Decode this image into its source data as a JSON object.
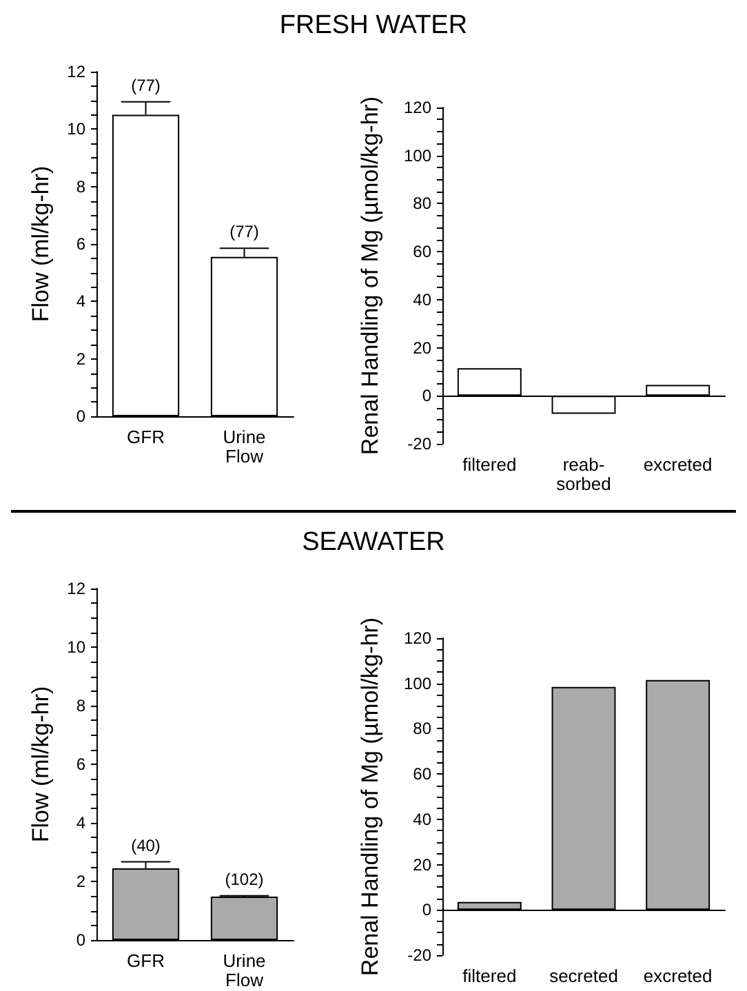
{
  "chart_data": [
    {
      "type": "bar",
      "title": "FRESH WATER",
      "ylabel": "Flow (ml/kg-hr)",
      "categories": [
        "GFR",
        "Urine\nFlow"
      ],
      "values": [
        10.5,
        5.55
      ],
      "errors": [
        0.45,
        0.3
      ],
      "annotations": [
        {
          "text": "(77)",
          "x": "GFR",
          "y": 10.95
        },
        {
          "text": "(77)",
          "x": "Urine\nFlow",
          "y": 5.85
        }
      ],
      "color": "#ffffff",
      "ylim": [
        0,
        12
      ],
      "yticks": [
        0,
        2,
        4,
        6,
        8,
        10,
        12
      ]
    },
    {
      "type": "bar",
      "ylabel": "Renal Handling of Mg (µmol/kg-hr)",
      "categories": [
        "filtered",
        "reab-\nsorbed",
        "excreted"
      ],
      "values": [
        11.5,
        -7.5,
        4.5
      ],
      "color": "#ffffff",
      "ylim": [
        -20,
        120
      ],
      "yticks": [
        -20,
        0,
        20,
        40,
        60,
        80,
        100,
        120
      ]
    },
    {
      "type": "bar",
      "title": "SEAWATER",
      "ylabel": "Flow (ml/kg-hr)",
      "categories": [
        "GFR",
        "Urine\nFlow"
      ],
      "values": [
        2.45,
        1.48
      ],
      "errors": [
        0.22,
        0.03
      ],
      "annotations": [
        {
          "text": "(40)",
          "x": "GFR",
          "y": 2.67
        },
        {
          "text": "(102)",
          "x": "Urine\nFlow",
          "y": 1.51
        }
      ],
      "color": "#aaaaaa",
      "ylim": [
        0,
        12
      ],
      "yticks": [
        0,
        2,
        4,
        6,
        8,
        10,
        12
      ]
    },
    {
      "type": "bar",
      "ylabel": "Renal Handling of Mg (µmol/kg-hr)",
      "categories": [
        "filtered",
        "secreted",
        "excreted"
      ],
      "values": [
        3.5,
        98.5,
        101.5
      ],
      "color": "#aaaaaa",
      "ylim": [
        -20,
        120
      ],
      "yticks": [
        -20,
        0,
        20,
        40,
        60,
        80,
        100,
        120
      ]
    }
  ]
}
